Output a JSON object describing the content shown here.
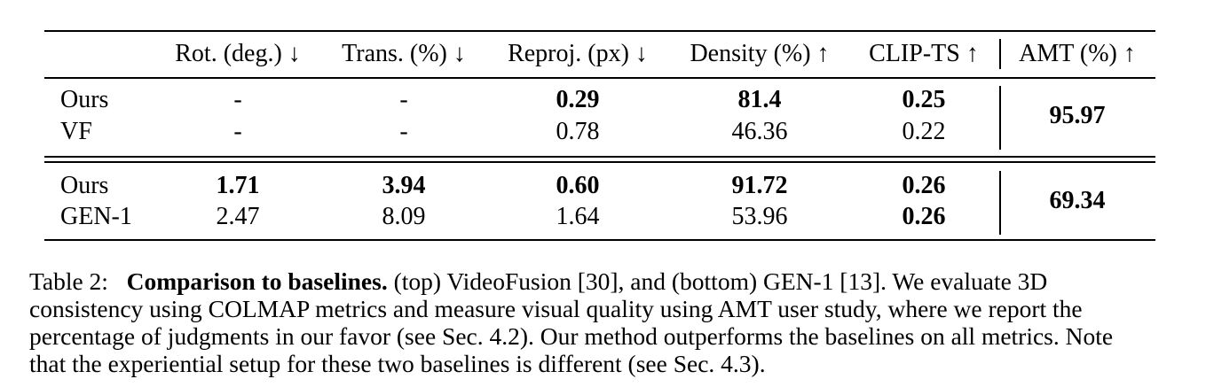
{
  "table": {
    "headers": [
      "",
      "Rot. (deg.) ↓",
      "Trans. (%) ↓",
      "Reproj. (px) ↓",
      "Density (%) ↑",
      "CLIP-TS ↑",
      "AMT (%) ↑"
    ],
    "top_rows": [
      {
        "method": "Ours",
        "rot": "-",
        "trans": "-",
        "reproj": "0.29",
        "density": "81.4",
        "clip": "0.25"
      },
      {
        "method": "VF",
        "rot": "-",
        "trans": "-",
        "reproj": "0.78",
        "density": "46.36",
        "clip": "0.22"
      }
    ],
    "top_amt": "95.97",
    "bottom_rows": [
      {
        "method": "Ours",
        "rot": "1.71",
        "trans": "3.94",
        "reproj": "0.60",
        "density": "91.72",
        "clip": "0.26"
      },
      {
        "method": "GEN-1",
        "rot": "2.47",
        "trans": "8.09",
        "reproj": "1.64",
        "density": "53.96",
        "clip": "0.26"
      }
    ],
    "bottom_amt": "69.34"
  },
  "caption": {
    "label": "Table 2:",
    "title": "Comparison to baselines.",
    "line1_rest": " (top) VideoFusion [30], and (bottom) GEN-1 [13]. We evaluate 3D",
    "line2": "consistency using COLMAP metrics and measure visual quality using AMT user study, where we report the",
    "line3": "percentage of judgments in our favor (see Sec. 4.2). Our method outperforms the baselines on all metrics. Note",
    "line4": "that the experiential setup for these two baselines is different (see Sec. 4.3)."
  }
}
